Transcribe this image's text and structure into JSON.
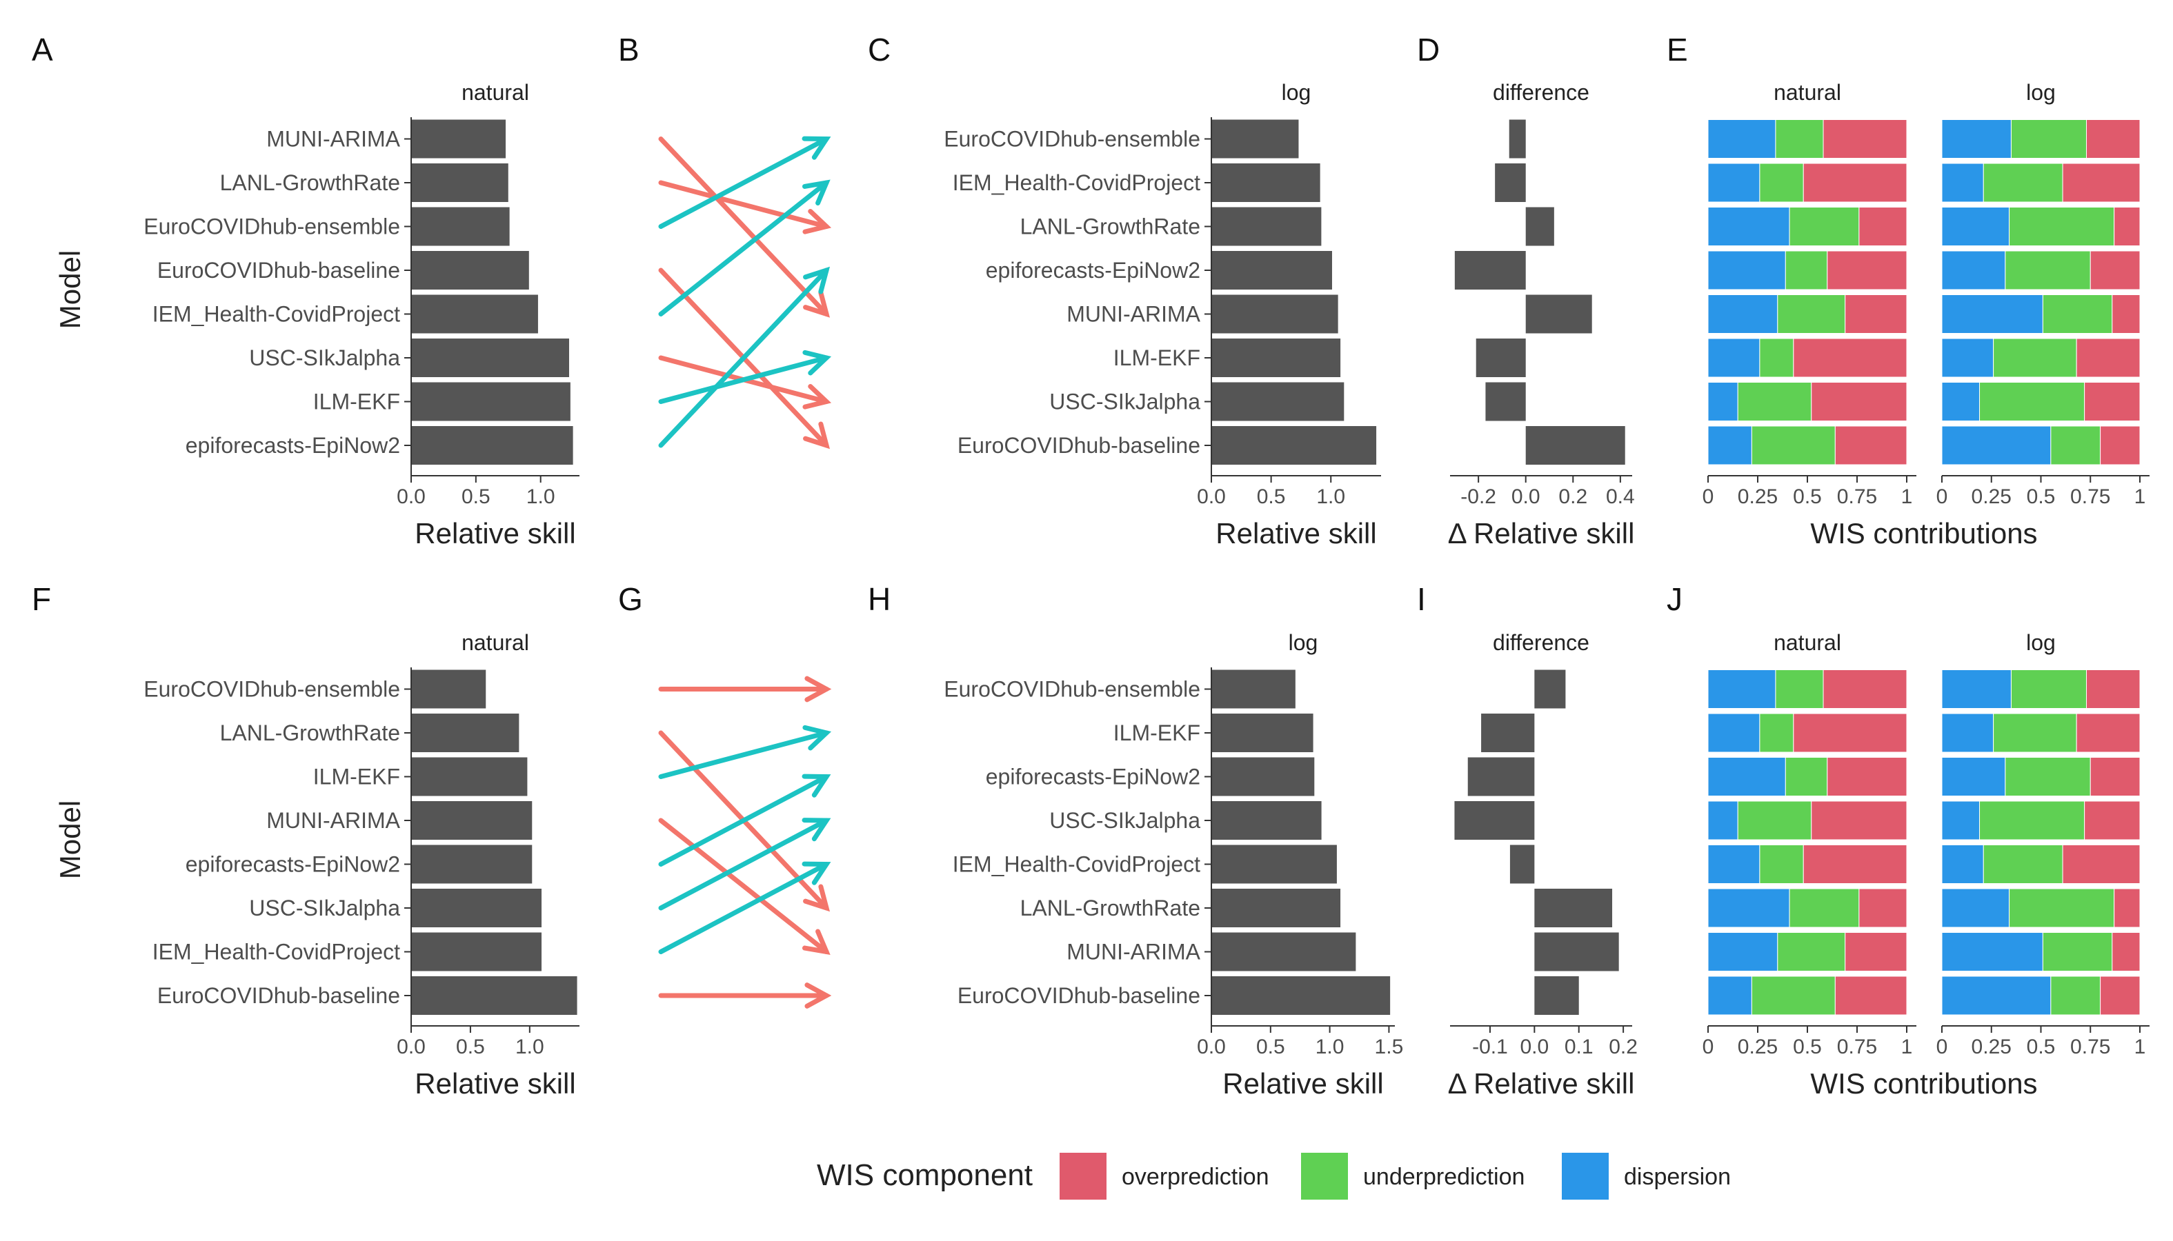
{
  "figure": {
    "y_axis_title": "Model",
    "legend": {
      "title": "WIS component",
      "items": [
        {
          "name": "overprediction",
          "color": "#E05A6C"
        },
        {
          "name": "underprediction",
          "color": "#5FD053"
        },
        {
          "name": "dispersion",
          "color": "#2A96E8"
        }
      ]
    },
    "colors": {
      "bar": "#555555",
      "up_arrow": "#1CC3C3",
      "down_arrow": "#F3756B"
    }
  },
  "chart_data": [
    {
      "panel": "A",
      "type": "bar",
      "orientation": "horizontal",
      "title": "natural",
      "xlabel": "Relative skill",
      "ylabel": "Model",
      "xlim": [
        0,
        1.3
      ],
      "ticks": [
        0,
        0.5,
        1
      ],
      "tick_labels": [
        "0.0",
        "0.5",
        "1.0"
      ],
      "categories": [
        "MUNI-ARIMA",
        "LANL-GrowthRate",
        "EuroCOVIDhub-ensemble",
        "EuroCOVIDhub-baseline",
        "IEM_Health-CovidProject",
        "USC-SIkJalpha",
        "ILM-EKF",
        "epiforecasts-EpiNow2"
      ],
      "values": [
        0.73,
        0.75,
        0.76,
        0.91,
        0.98,
        1.22,
        1.23,
        1.25
      ]
    },
    {
      "panel": "B",
      "type": "slope",
      "description_from": "A",
      "description_to": "C",
      "links": [
        {
          "from": 1,
          "to": 5
        },
        {
          "from": 2,
          "to": 3
        },
        {
          "from": 3,
          "to": 1
        },
        {
          "from": 4,
          "to": 8
        },
        {
          "from": 5,
          "to": 2
        },
        {
          "from": 6,
          "to": 7
        },
        {
          "from": 7,
          "to": 6
        },
        {
          "from": 8,
          "to": 4
        }
      ]
    },
    {
      "panel": "C",
      "type": "bar",
      "orientation": "horizontal",
      "title": "log",
      "xlabel": "Relative skill",
      "xlim": [
        0,
        1.42
      ],
      "ticks": [
        0,
        0.5,
        1
      ],
      "tick_labels": [
        "0.0",
        "0.5",
        "1.0"
      ],
      "categories": [
        "EuroCOVIDhub-ensemble",
        "IEM_Health-CovidProject",
        "LANL-GrowthRate",
        "epiforecasts-EpiNow2",
        "MUNI-ARIMA",
        "ILM-EKF",
        "USC-SIkJalpha",
        "EuroCOVIDhub-baseline"
      ],
      "values": [
        0.73,
        0.91,
        0.92,
        1.01,
        1.06,
        1.08,
        1.11,
        1.38
      ]
    },
    {
      "panel": "D",
      "type": "bar",
      "orientation": "horizontal",
      "title": "difference",
      "xlabel": "Δ Relative skill",
      "xlim": [
        -0.32,
        0.45
      ],
      "ticks": [
        -0.2,
        0,
        0.2,
        0.4
      ],
      "tick_labels": [
        "-0.2",
        "0.0",
        "0.2",
        "0.4"
      ],
      "categories": [
        "EuroCOVIDhub-ensemble",
        "IEM_Health-CovidProject",
        "LANL-GrowthRate",
        "epiforecasts-EpiNow2",
        "MUNI-ARIMA",
        "ILM-EKF",
        "USC-SIkJalpha",
        "EuroCOVIDhub-baseline"
      ],
      "values": [
        -0.07,
        -0.13,
        0.12,
        -0.3,
        0.28,
        -0.21,
        -0.17,
        0.42
      ]
    },
    {
      "panel": "E",
      "type": "bar",
      "stacked": true,
      "orientation": "horizontal",
      "xlabel": "WIS contributions",
      "xlim": [
        0,
        1
      ],
      "ticks": [
        0,
        0.25,
        0.5,
        0.75,
        1
      ],
      "tick_labels": [
        "0",
        "0.25",
        "0.5",
        "0.75",
        "1"
      ],
      "facets": [
        {
          "title": "natural",
          "dispersion": [
            0.34,
            0.26,
            0.41,
            0.39,
            0.35,
            0.26,
            0.15,
            0.22
          ],
          "underprediction": [
            0.24,
            0.22,
            0.35,
            0.21,
            0.34,
            0.17,
            0.37,
            0.42
          ],
          "overprediction": [
            0.42,
            0.52,
            0.24,
            0.4,
            0.31,
            0.57,
            0.48,
            0.36
          ]
        },
        {
          "title": "log",
          "dispersion": [
            0.35,
            0.21,
            0.34,
            0.32,
            0.51,
            0.26,
            0.19,
            0.55
          ],
          "underprediction": [
            0.38,
            0.4,
            0.53,
            0.43,
            0.35,
            0.42,
            0.53,
            0.25
          ],
          "overprediction": [
            0.27,
            0.39,
            0.13,
            0.25,
            0.14,
            0.32,
            0.28,
            0.2
          ]
        }
      ]
    },
    {
      "panel": "F",
      "type": "bar",
      "orientation": "horizontal",
      "title": "natural",
      "xlabel": "Relative skill",
      "ylabel": "Model",
      "xlim": [
        0,
        1.42
      ],
      "ticks": [
        0,
        0.5,
        1
      ],
      "tick_labels": [
        "0.0",
        "0.5",
        "1.0"
      ],
      "categories": [
        "EuroCOVIDhub-ensemble",
        "LANL-GrowthRate",
        "ILM-EKF",
        "MUNI-ARIMA",
        "epiforecasts-EpiNow2",
        "USC-SIkJalpha",
        "IEM_Health-CovidProject",
        "EuroCOVIDhub-baseline"
      ],
      "values": [
        0.63,
        0.91,
        0.98,
        1.02,
        1.02,
        1.1,
        1.1,
        1.4
      ]
    },
    {
      "panel": "G",
      "type": "slope",
      "description_from": "F",
      "description_to": "H",
      "links": [
        {
          "from": 1,
          "to": 1
        },
        {
          "from": 2,
          "to": 6
        },
        {
          "from": 3,
          "to": 2
        },
        {
          "from": 4,
          "to": 7
        },
        {
          "from": 5,
          "to": 3
        },
        {
          "from": 6,
          "to": 4
        },
        {
          "from": 7,
          "to": 5
        },
        {
          "from": 8,
          "to": 8
        }
      ]
    },
    {
      "panel": "H",
      "type": "bar",
      "orientation": "horizontal",
      "title": "log",
      "xlabel": "Relative skill",
      "xlim": [
        0,
        1.55
      ],
      "ticks": [
        0,
        0.5,
        1,
        1.5
      ],
      "tick_labels": [
        "0.0",
        "0.5",
        "1.0",
        "1.5"
      ],
      "categories": [
        "EuroCOVIDhub-ensemble",
        "ILM-EKF",
        "epiforecasts-EpiNow2",
        "USC-SIkJalpha",
        "IEM_Health-CovidProject",
        "LANL-GrowthRate",
        "MUNI-ARIMA",
        "EuroCOVIDhub-baseline"
      ],
      "values": [
        0.71,
        0.86,
        0.87,
        0.93,
        1.06,
        1.09,
        1.22,
        1.51
      ]
    },
    {
      "panel": "I",
      "type": "bar",
      "orientation": "horizontal",
      "title": "difference",
      "xlabel": "Δ Relative skill",
      "xlim": [
        -0.19,
        0.22
      ],
      "ticks": [
        -0.1,
        0,
        0.1,
        0.2
      ],
      "tick_labels": [
        "-0.1",
        "0.0",
        "0.1",
        "0.2"
      ],
      "categories": [
        "EuroCOVIDhub-ensemble",
        "ILM-EKF",
        "epiforecasts-EpiNow2",
        "USC-SIkJalpha",
        "IEM_Health-CovidProject",
        "LANL-GrowthRate",
        "MUNI-ARIMA",
        "EuroCOVIDhub-baseline"
      ],
      "values": [
        0.07,
        -0.12,
        -0.15,
        -0.18,
        -0.055,
        0.175,
        0.19,
        0.1
      ]
    },
    {
      "panel": "J",
      "type": "bar",
      "stacked": true,
      "orientation": "horizontal",
      "xlabel": "WIS contributions",
      "xlim": [
        0,
        1
      ],
      "ticks": [
        0,
        0.25,
        0.5,
        0.75,
        1
      ],
      "tick_labels": [
        "0",
        "0.25",
        "0.5",
        "0.75",
        "1"
      ],
      "facets": [
        {
          "title": "natural",
          "dispersion": [
            0.34,
            0.26,
            0.39,
            0.15,
            0.26,
            0.41,
            0.35,
            0.22
          ],
          "underprediction": [
            0.24,
            0.17,
            0.21,
            0.37,
            0.22,
            0.35,
            0.34,
            0.42
          ],
          "overprediction": [
            0.42,
            0.57,
            0.4,
            0.48,
            0.52,
            0.24,
            0.31,
            0.36
          ]
        },
        {
          "title": "log",
          "dispersion": [
            0.35,
            0.26,
            0.32,
            0.19,
            0.21,
            0.34,
            0.51,
            0.55
          ],
          "underprediction": [
            0.38,
            0.42,
            0.43,
            0.53,
            0.4,
            0.53,
            0.35,
            0.25
          ],
          "overprediction": [
            0.27,
            0.32,
            0.25,
            0.28,
            0.39,
            0.13,
            0.14,
            0.2
          ]
        }
      ]
    }
  ]
}
